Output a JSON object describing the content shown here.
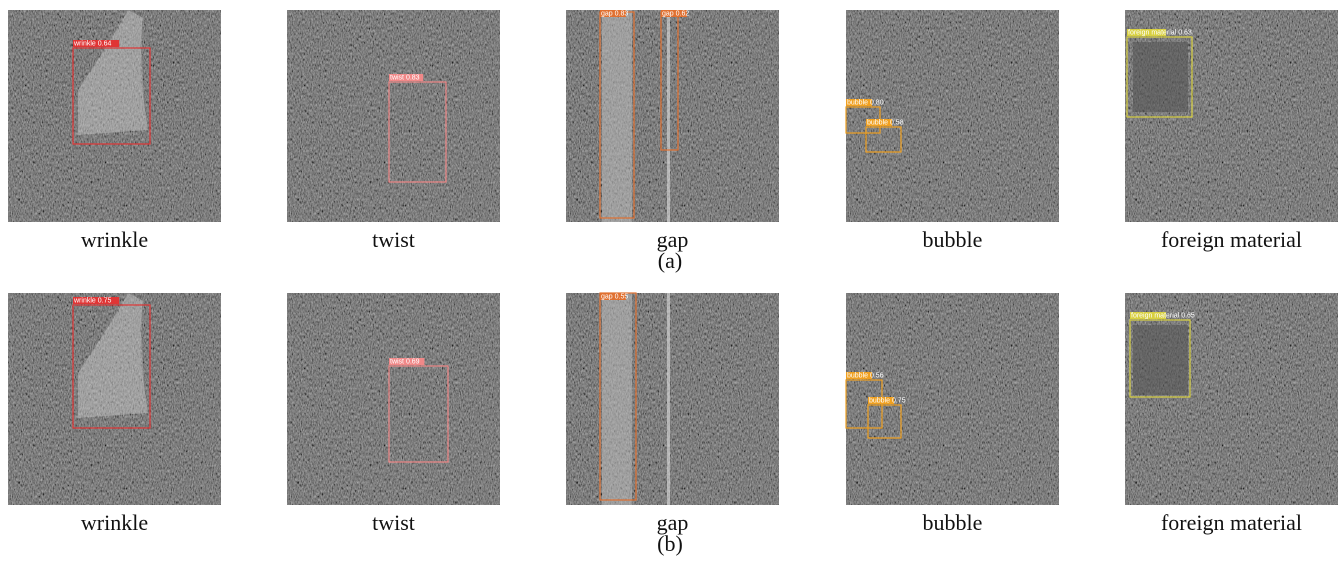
{
  "rows": [
    {
      "label": "(a)",
      "panels": [
        {
          "caption": "wrinkle",
          "boxes": [
            {
              "label": "wrinkle 0.64"
            }
          ]
        },
        {
          "caption": "twist",
          "boxes": [
            {
              "label": "twist 0.83"
            }
          ]
        },
        {
          "caption": "gap",
          "boxes": [
            {
              "label": "gap 0.83"
            },
            {
              "label": "gap 0.62"
            }
          ]
        },
        {
          "caption": "bubble",
          "boxes": [
            {
              "label": "bubble 0.80"
            },
            {
              "label": "bubble 0.58"
            }
          ]
        },
        {
          "caption": "foreign material",
          "boxes": [
            {
              "label": "foreign material 0.63"
            }
          ]
        }
      ]
    },
    {
      "label": "(b)",
      "panels": [
        {
          "caption": "wrinkle",
          "boxes": [
            {
              "label": "wrinkle 0.75"
            }
          ]
        },
        {
          "caption": "twist",
          "boxes": [
            {
              "label": "twist 0.69"
            }
          ]
        },
        {
          "caption": "gap",
          "boxes": [
            {
              "label": "gap 0.55"
            }
          ]
        },
        {
          "caption": "bubble",
          "boxes": [
            {
              "label": "bubble 0.56"
            },
            {
              "label": "bubble 0.75"
            }
          ]
        },
        {
          "caption": "foreign material",
          "boxes": [
            {
              "label": "foreign material 0.65"
            }
          ]
        }
      ]
    }
  ]
}
